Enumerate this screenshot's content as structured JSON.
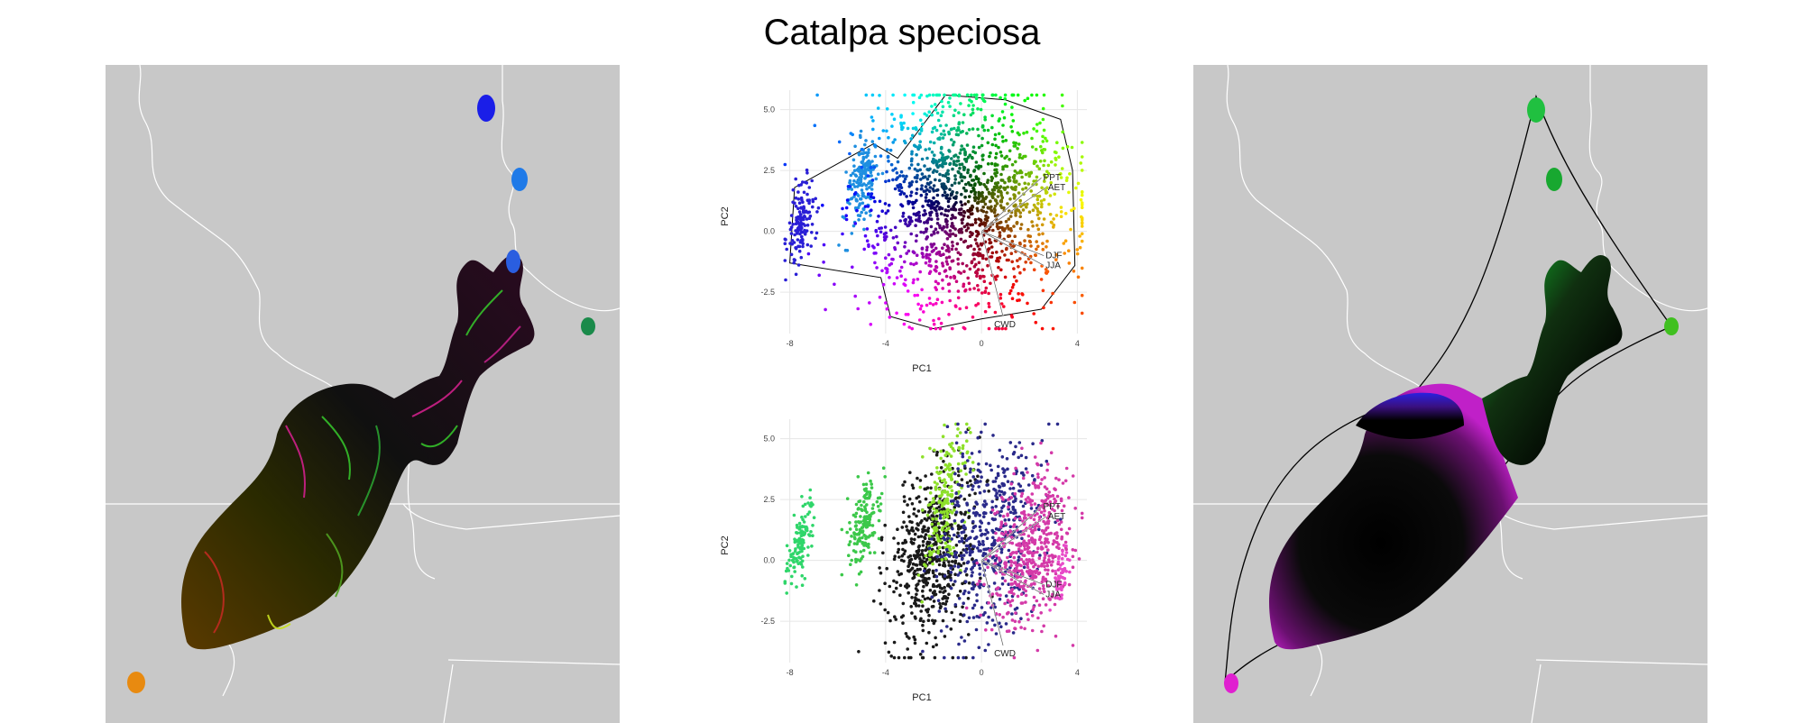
{
  "title": "Catalpa speciosa",
  "colors": {
    "map_bg": "#c8c8c8",
    "border": "#ffffff",
    "hull": "#000000"
  },
  "chart_data": [
    {
      "type": "scatter",
      "panel": "pca-top",
      "title": "",
      "xlabel": "PC1",
      "ylabel": "PC2",
      "xlim": [
        -8.4,
        4.4
      ],
      "ylim": [
        -4.2,
        5.8
      ],
      "xticks": [
        "-8",
        "-4",
        "0",
        "4"
      ],
      "xtick_values": [
        -8,
        -4,
        0,
        4
      ],
      "yticks": [
        "5.0",
        "2.5",
        "0.0",
        "-2.5"
      ],
      "ytick_values": [
        5.0,
        2.5,
        0.0,
        -2.5
      ],
      "grid": true,
      "vectors": [
        {
          "label": "PPT",
          "x": 2.5,
          "y": 2.2
        },
        {
          "label": "AET",
          "x": 2.7,
          "y": 1.8
        },
        {
          "label": "DJF",
          "x": 2.6,
          "y": -1.0
        },
        {
          "label": "JJA",
          "x": 2.6,
          "y": -1.4
        },
        {
          "label": "CWD",
          "x": 0.9,
          "y": -3.5
        }
      ],
      "clusters": [
        {
          "x": -7.5,
          "y": 0.5,
          "sx": 0.25,
          "sy": 0.9,
          "n": 140,
          "color": "#2a1fd6"
        },
        {
          "x": -5.0,
          "y": 2.0,
          "sx": 0.3,
          "sy": 0.9,
          "n": 180,
          "color": "#1f8fe0"
        },
        {
          "x": -0.7,
          "y": 1.2,
          "sx": 2.2,
          "sy": 2.2,
          "n": 1500,
          "color": "mix"
        }
      ]
    },
    {
      "type": "scatter",
      "panel": "pca-bottom",
      "title": "",
      "xlabel": "PC1",
      "ylabel": "PC2",
      "xlim": [
        -8.4,
        4.4
      ],
      "ylim": [
        -4.2,
        5.8
      ],
      "xticks": [
        "-8",
        "-4",
        "0",
        "4"
      ],
      "xtick_values": [
        -8,
        -4,
        0,
        4
      ],
      "yticks": [
        "5.0",
        "2.5",
        "0.0",
        "-2.5"
      ],
      "ytick_values": [
        5.0,
        2.5,
        0.0,
        -2.5
      ],
      "grid": true,
      "vectors": [
        {
          "label": "PPT",
          "x": 2.5,
          "y": 2.2
        },
        {
          "label": "AET",
          "x": 2.7,
          "y": 1.8
        },
        {
          "label": "DJF",
          "x": 2.6,
          "y": -1.0
        },
        {
          "label": "JJA",
          "x": 2.6,
          "y": -1.4
        },
        {
          "label": "CWD",
          "x": 0.9,
          "y": -3.5
        }
      ],
      "clusters": [
        {
          "x": -7.6,
          "y": 0.6,
          "sx": 0.25,
          "sy": 0.8,
          "n": 120,
          "color": "#2fd66a"
        },
        {
          "x": -4.9,
          "y": 1.6,
          "sx": 0.3,
          "sy": 0.9,
          "n": 160,
          "color": "#3cc84a"
        },
        {
          "x": -2.0,
          "y": 0.3,
          "sx": 0.9,
          "sy": 1.8,
          "n": 600,
          "color": "#1a1a1a"
        },
        {
          "x": -1.5,
          "y": 2.5,
          "sx": 0.4,
          "sy": 1.5,
          "n": 200,
          "color": "#8ee02a"
        },
        {
          "x": 0.3,
          "y": 1.0,
          "sx": 1.0,
          "sy": 2.0,
          "n": 500,
          "color": "#2a2a8a"
        },
        {
          "x": 2.0,
          "y": 0.4,
          "sx": 0.8,
          "sy": 1.6,
          "n": 500,
          "color": "#d43aa8"
        },
        {
          "x": 3.3,
          "y": -0.8,
          "sx": 0.12,
          "sy": 0.6,
          "n": 60,
          "color": "#e84ac8"
        }
      ]
    }
  ],
  "maps": [
    {
      "panel": "map-left",
      "style": "raster"
    },
    {
      "panel": "map-right",
      "style": "smooth"
    }
  ]
}
